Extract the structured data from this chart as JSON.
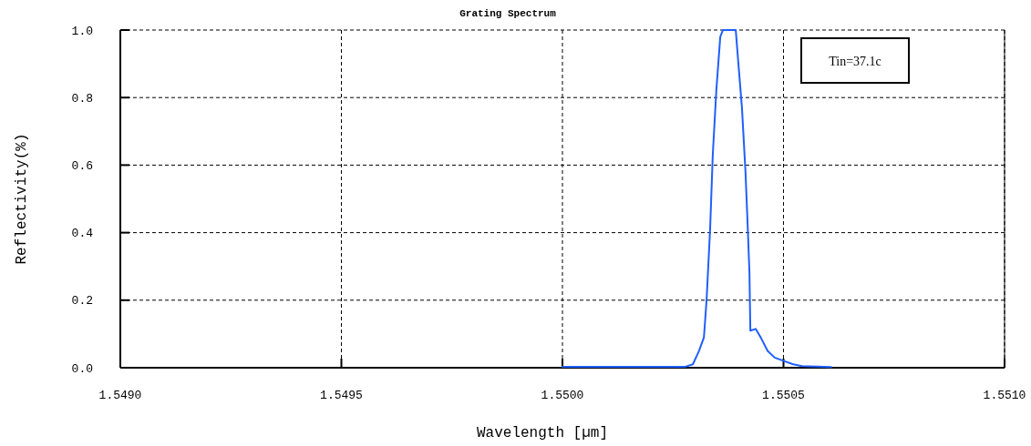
{
  "chart_data": {
    "type": "line",
    "title": "Grating Spectrum",
    "xlabel": "Wavelength [µm]",
    "ylabel": "Reflectivity(%)",
    "annotations": [
      "Tin=37.1c"
    ],
    "x": [
      1.55,
      1.550278,
      1.550295,
      1.550309,
      1.55032,
      1.550326,
      1.550334,
      1.55034,
      1.550348,
      1.550357,
      1.550363,
      1.550392,
      1.550398,
      1.550406,
      1.550414,
      1.550419,
      1.550423,
      1.550425,
      1.550437,
      1.55045,
      1.550464,
      1.55048,
      1.550501,
      1.550522,
      1.550542,
      1.550608
    ],
    "series": [
      {
        "color": "#1f5fff",
        "values": [
          0.003,
          0.003,
          0.01,
          0.05,
          0.09,
          0.2,
          0.41,
          0.63,
          0.82,
          0.98,
          1.0,
          1.0,
          0.9,
          0.77,
          0.58,
          0.42,
          0.28,
          0.11,
          0.115,
          0.086,
          0.05,
          0.03,
          0.02,
          0.01,
          0.005,
          0.002
        ]
      }
    ],
    "xlim": [
      1.549,
      1.551
    ],
    "xticks": [
      {
        "value": 1.549,
        "label": "1.5490"
      },
      {
        "value": 1.5495,
        "label": "1.5495"
      },
      {
        "value": 1.55,
        "label": "1.5500"
      },
      {
        "value": 1.5505,
        "label": "1.5505"
      },
      {
        "value": 1.551,
        "label": "1.5510"
      }
    ],
    "ylim": [
      0,
      1
    ],
    "yticks": [
      {
        "value": 0,
        "label": "0.0"
      },
      {
        "value": 0.2,
        "label": "0.2"
      },
      {
        "value": 0.4,
        "label": "0.4"
      },
      {
        "value": 0.6,
        "label": "0.6"
      },
      {
        "value": 0.8,
        "label": "0.8"
      },
      {
        "value": 1,
        "label": "1.0"
      }
    ],
    "grid": true,
    "marker": "none",
    "line_style": "solid"
  }
}
